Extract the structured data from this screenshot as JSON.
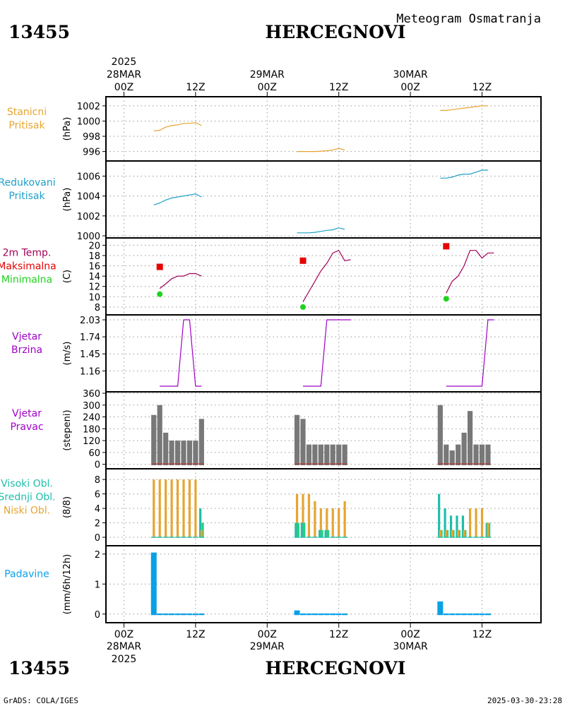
{
  "header": {
    "station_id": "13455",
    "station_name": "HERCEGNOVI",
    "subtitle": "Meteogram Osmatranja"
  },
  "footer": {
    "station_id": "13455",
    "station_name": "HERCEGNOVI",
    "credit": "GrADS: COLA/IGES",
    "timestamp": "2025-03-30-23:28"
  },
  "time_axis": {
    "year": "2025",
    "start": "2025-03-28T00Z",
    "end": "2025-03-30T18Z",
    "labels": [
      {
        "h": 0,
        "text": "00Z",
        "date": "28MAR",
        "year": "2025"
      },
      {
        "h": 12,
        "text": "12Z"
      },
      {
        "h": 24,
        "text": "00Z",
        "date": "29MAR"
      },
      {
        "h": 36,
        "text": "12Z"
      },
      {
        "h": 48,
        "text": "00Z",
        "date": "30MAR"
      },
      {
        "h": 60,
        "text": "12Z"
      }
    ]
  },
  "colors": {
    "station_pressure": "#e6a532",
    "reduced_pressure": "#1ea0c8",
    "temperature_line": "#a0005a",
    "tmax": "#e60000",
    "tmin": "#1ed21e",
    "wind": "#a000c8",
    "wind_dir_bar": "#787878",
    "cloud_high": "#1ebeaa",
    "cloud_mid": "#1ed282",
    "cloud_low": "#e6a532",
    "precip": "#0aa0e6"
  },
  "chart_data": [
    {
      "id": "station_pressure",
      "type": "line",
      "labels": [
        "Stanicni",
        "Pritisak"
      ],
      "ylabel": "(hPa)",
      "ylim": [
        995.5,
        1002.5
      ],
      "yticks": [
        996,
        998,
        1000,
        1002
      ],
      "series": [
        {
          "x": [
            5,
            6,
            7,
            8,
            9,
            10,
            11,
            12,
            13
          ],
          "y": [
            998.7,
            998.8,
            999.2,
            999.4,
            999.5,
            999.7,
            999.7,
            999.8,
            999.4
          ]
        },
        {
          "x": [
            29,
            30,
            31,
            32,
            33,
            34,
            35,
            36,
            37
          ],
          "y": [
            996.0,
            996.0,
            996.0,
            996.0,
            996.05,
            996.1,
            996.2,
            996.4,
            996.2
          ]
        },
        {
          "x": [
            53,
            54,
            55,
            56,
            57,
            58,
            59,
            60,
            61
          ],
          "y": [
            1001.4,
            1001.4,
            1001.5,
            1001.6,
            1001.7,
            1001.8,
            1001.9,
            1002.0,
            1002.0
          ]
        }
      ]
    },
    {
      "id": "reduced_pressure",
      "type": "line",
      "labels": [
        "Redukovani",
        "Pritisak"
      ],
      "ylabel": "(hPa)",
      "ylim": [
        1000,
        1006.6
      ],
      "yticks": [
        1000,
        1002,
        1004,
        1006
      ],
      "series": [
        {
          "x": [
            5,
            6,
            7,
            8,
            9,
            10,
            11,
            12,
            13
          ],
          "y": [
            1003.1,
            1003.3,
            1003.6,
            1003.8,
            1003.9,
            1004.0,
            1004.1,
            1004.2,
            1003.9
          ]
        },
        {
          "x": [
            29,
            30,
            31,
            32,
            33,
            34,
            35,
            36,
            37
          ],
          "y": [
            1000.3,
            1000.3,
            1000.3,
            1000.35,
            1000.45,
            1000.55,
            1000.6,
            1000.8,
            1000.65
          ]
        },
        {
          "x": [
            53,
            54,
            55,
            56,
            57,
            58,
            59,
            60,
            61
          ],
          "y": [
            1005.8,
            1005.8,
            1005.9,
            1006.1,
            1006.2,
            1006.2,
            1006.4,
            1006.6,
            1006.6
          ]
        }
      ]
    },
    {
      "id": "temperature",
      "type": "line",
      "labels": [
        "2m Temp.",
        "Maksimalna",
        "Minimalna"
      ],
      "ylabel": "(C)",
      "ylim": [
        7.3,
        20.6
      ],
      "yticks": [
        8,
        10,
        12,
        14,
        16,
        18,
        20
      ],
      "series": [
        {
          "x": [
            6,
            7,
            8,
            9,
            10,
            11,
            12,
            13
          ],
          "y": [
            11.6,
            12.5,
            13.5,
            14.0,
            14.0,
            14.5,
            14.5,
            14.0
          ]
        },
        {
          "x": [
            30,
            31,
            32,
            33,
            34,
            35,
            36,
            37,
            38
          ],
          "y": [
            9.0,
            11.0,
            13.0,
            15.0,
            16.5,
            18.5,
            19.0,
            17.0,
            17.2
          ]
        },
        {
          "x": [
            54,
            55,
            56,
            57,
            58,
            59,
            60,
            61,
            62
          ],
          "y": [
            10.7,
            13.0,
            14.0,
            16.0,
            19.0,
            19.0,
            17.5,
            18.5,
            18.5
          ]
        }
      ],
      "tmax": [
        {
          "x": 6,
          "y": 15.8
        },
        {
          "x": 30,
          "y": 17.0
        },
        {
          "x": 54,
          "y": 19.8
        }
      ],
      "tmin": [
        {
          "x": 6,
          "y": 10.5
        },
        {
          "x": 30,
          "y": 8.0
        },
        {
          "x": 54,
          "y": 9.6
        }
      ]
    },
    {
      "id": "wind_speed",
      "type": "line",
      "labels": [
        "Vjetar",
        "Brzina"
      ],
      "ylabel": "(m/s)",
      "ylim": [
        0.9,
        2.03
      ],
      "yticks": [
        1.16,
        1.45,
        1.74,
        2.03
      ],
      "ytick_labels": [
        "1.16",
        "1.45",
        "1.74",
        "2.03"
      ],
      "series": [
        {
          "x": [
            6,
            7,
            8,
            9,
            10,
            11,
            12,
            13
          ],
          "y": [
            0.9,
            0.9,
            0.9,
            0.9,
            2.03,
            2.03,
            0.9,
            0.9
          ]
        },
        {
          "x": [
            30,
            31,
            32,
            33,
            34,
            35,
            36,
            37,
            38
          ],
          "y": [
            0.9,
            0.9,
            0.9,
            0.9,
            2.03,
            2.03,
            2.03,
            2.03,
            2.03
          ]
        },
        {
          "x": [
            54,
            55,
            56,
            57,
            58,
            59,
            60,
            61,
            62
          ],
          "y": [
            0.9,
            0.9,
            0.9,
            0.9,
            0.9,
            0.9,
            0.9,
            2.03,
            2.03
          ]
        }
      ]
    },
    {
      "id": "wind_direction",
      "type": "bar",
      "labels": [
        "Vjetar",
        "Pravac"
      ],
      "ylabel": "(stepeni)",
      "ylim": [
        -5,
        360
      ],
      "yticks": [
        0,
        60,
        120,
        180,
        240,
        300,
        360
      ],
      "x": [
        5,
        6,
        7,
        8,
        9,
        10,
        11,
        12,
        13,
        29,
        30,
        31,
        32,
        33,
        34,
        35,
        36,
        37,
        53,
        54,
        55,
        56,
        57,
        58,
        59,
        60,
        61
      ],
      "values": [
        250,
        300,
        160,
        120,
        120,
        120,
        120,
        120,
        230,
        250,
        230,
        100,
        100,
        100,
        100,
        100,
        100,
        100,
        300,
        100,
        70,
        100,
        160,
        270,
        100,
        100,
        100
      ]
    },
    {
      "id": "cloud_cover",
      "type": "bar",
      "labels": [
        "Visoki Obl.",
        "Srednji Obl.",
        "Niski Obl."
      ],
      "ylabel": "(8/8)",
      "ylim": [
        0,
        8.6
      ],
      "yticks": [
        0,
        2,
        4,
        6,
        8
      ],
      "x": [
        5,
        6,
        7,
        8,
        9,
        10,
        11,
        12,
        13,
        29,
        30,
        31,
        32,
        33,
        34,
        35,
        36,
        37,
        53,
        54,
        55,
        56,
        57,
        58,
        59,
        60,
        61
      ],
      "series": [
        {
          "name": "Visoki Obl.",
          "values": [
            0,
            0,
            0,
            0,
            0,
            0,
            0,
            0,
            4,
            2,
            2,
            0,
            0,
            1,
            1,
            0,
            0,
            0,
            6,
            4,
            3,
            3,
            3,
            0,
            0,
            0,
            2
          ]
        },
        {
          "name": "Srednji Obl.",
          "values": [
            0,
            0,
            0,
            0,
            0,
            0,
            0,
            0,
            2,
            2,
            2,
            0,
            0,
            1,
            1,
            0,
            0,
            0,
            1,
            1,
            1,
            1,
            1,
            0,
            0,
            0,
            2
          ]
        },
        {
          "name": "Niski Obl.",
          "values": [
            8,
            8,
            8,
            8,
            8,
            8,
            8,
            8,
            1,
            6,
            6,
            6,
            5,
            4,
            4,
            4,
            4,
            5,
            1,
            1,
            1,
            1,
            1,
            4,
            4,
            4,
            2
          ]
        }
      ]
    },
    {
      "id": "precipitation",
      "type": "bar",
      "labels": [
        "Padavine"
      ],
      "ylabel": "(mm/6h/12h)",
      "ylim": [
        -0.1,
        2.1
      ],
      "yticks": [
        0,
        1,
        2
      ],
      "x": [
        5,
        6,
        7,
        8,
        9,
        10,
        11,
        12,
        13,
        29,
        30,
        31,
        32,
        33,
        34,
        35,
        36,
        37,
        53,
        54,
        55,
        56,
        57,
        58,
        59,
        60,
        61
      ],
      "values": [
        2.05,
        0.02,
        0.02,
        0.02,
        0.02,
        0.02,
        0.02,
        0.02,
        0.02,
        0.12,
        0.02,
        0.02,
        0.02,
        0.02,
        0.02,
        0.02,
        0.02,
        0.02,
        0.42,
        0.02,
        0.02,
        0.02,
        0.02,
        0.02,
        0.02,
        0.02,
        0.02
      ]
    }
  ]
}
